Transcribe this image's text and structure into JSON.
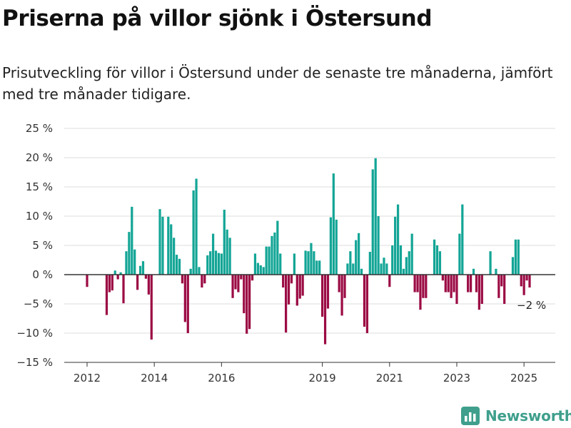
{
  "header": {
    "title": "Priserna på villor sjönk i Östersund",
    "subtitle": "Prisutveckling för villor i Östersund under de senaste tre månaderna, jämfört med tre månader tidigare."
  },
  "brand": {
    "name": "Newsworthy",
    "icon": "bar-chart-logo-icon"
  },
  "colors": {
    "positive": "#13a596",
    "negative": "#9b0b44",
    "grid": "#dcdcdc",
    "zero_line": "#333333"
  },
  "chart_data": {
    "type": "bar",
    "title": "",
    "xlabel": "",
    "ylabel": "",
    "ylim": [
      -15,
      25
    ],
    "y_ticks": [
      25,
      20,
      15,
      10,
      5,
      0,
      -5,
      -10,
      -15
    ],
    "y_tick_labels": [
      "25 %",
      "20 %",
      "15 %",
      "10 %",
      "5 %",
      "0 %",
      "−5 %",
      "−10 %",
      "−15 %"
    ],
    "x_ticks": [
      2012,
      2014,
      2016,
      2019,
      2021,
      2023,
      2025
    ],
    "x_tick_labels": [
      "2012",
      "2014",
      "2016",
      "2019",
      "2021",
      "2023",
      "2025"
    ],
    "x_start": "2012-01",
    "x_end": "2025-03",
    "last_value_label": "−2 %",
    "series": [
      {
        "values": [
          -2.1,
          0,
          0,
          0,
          0,
          0,
          0,
          -6.9,
          -3,
          -2.7,
          0.7,
          -0.8,
          0.4,
          -4.9,
          4,
          7.3,
          11.6,
          4.3,
          -2.6,
          1.5,
          2.3,
          -0.7,
          -3.4,
          -11.1,
          0,
          0,
          11.2,
          9.9,
          0,
          9.9,
          8.6,
          6.3,
          3.4,
          2.7,
          -1.5,
          -8.1,
          -10,
          1,
          14.4,
          16.4,
          1.3,
          -2.2,
          -1.5,
          3.3,
          4,
          7,
          4.1,
          3.7,
          3.6,
          11.1,
          7.7,
          6.3,
          -4,
          -2.5,
          -3,
          -0.8,
          -6.6,
          -10.1,
          -9.3,
          -1,
          3.6,
          2,
          1.6,
          1.3,
          4.8,
          4.8,
          6.6,
          7.2,
          9.2,
          3.6,
          -2.2,
          -9.9,
          -5.1,
          -1.5,
          3.6,
          -5.3,
          -4.1,
          -3.6,
          4.1,
          4,
          5.4,
          4,
          2.4,
          2.4,
          -7.2,
          -11.9,
          -5.8,
          9.8,
          17.3,
          9.4,
          -3,
          -7,
          -4,
          1.9,
          4,
          1.9,
          5.9,
          7.1,
          1,
          -8.9,
          -10,
          3.9,
          18,
          19.9,
          10,
          1.9,
          2.9,
          1.9,
          -2.1,
          5,
          9.9,
          12,
          5,
          1,
          3,
          4,
          7,
          -3,
          -3,
          -6,
          -4,
          -4,
          0,
          0,
          6,
          5,
          4,
          -1,
          -3,
          -3,
          -4,
          -3,
          -5,
          7,
          12,
          0,
          -3,
          -3,
          1,
          -3,
          -6,
          -5,
          0,
          0,
          4,
          0,
          1,
          -4,
          -2,
          -5,
          0,
          0,
          3,
          6,
          6,
          -2,
          -3.5,
          -1,
          -2.2
        ]
      }
    ]
  }
}
